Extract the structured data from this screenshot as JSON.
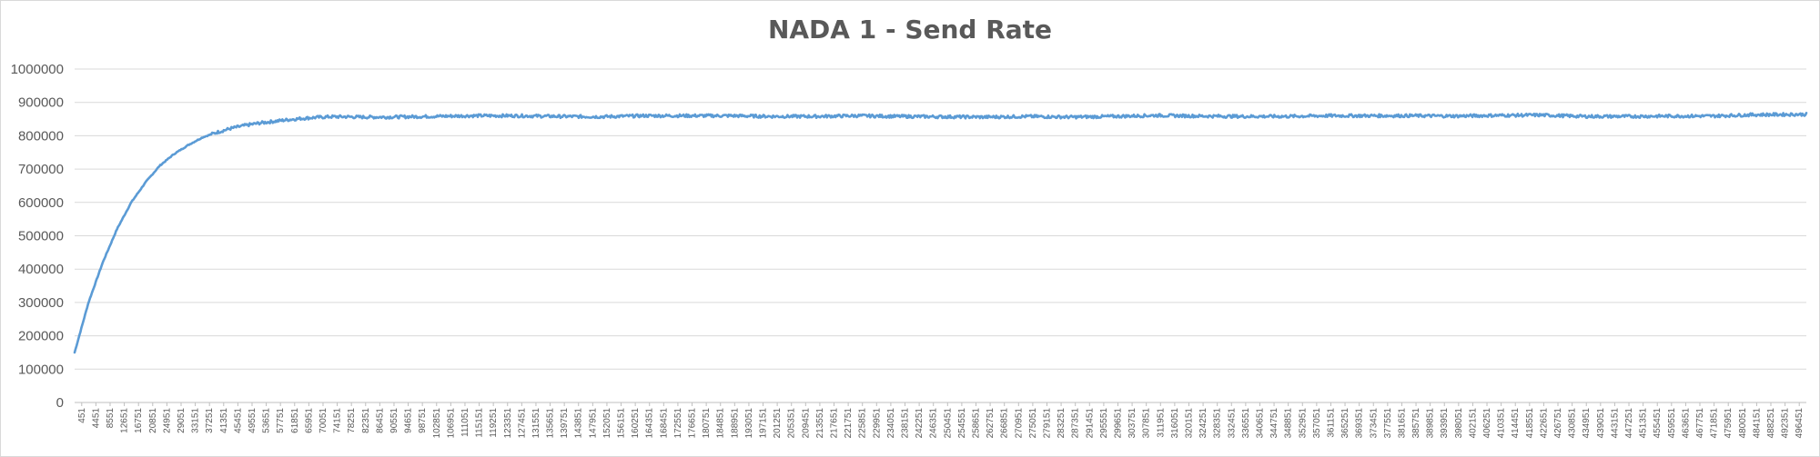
{
  "chart_data": {
    "type": "line",
    "title": "NADA 1 - Send Rate",
    "xlabel": "",
    "ylabel": "",
    "ylim": [
      0,
      1000000
    ],
    "y_ticks": [
      0,
      100000,
      200000,
      300000,
      400000,
      500000,
      600000,
      700000,
      800000,
      900000,
      1000000
    ],
    "x_tick_labels": [
      "451",
      "4451",
      "8551",
      "12651",
      "16751",
      "20851",
      "24951",
      "29051",
      "33151",
      "37251",
      "41351",
      "45451",
      "49551",
      "53651",
      "57751",
      "61851",
      "65951",
      "70051",
      "74151",
      "78251",
      "82351",
      "86451",
      "90551",
      "94651",
      "98751",
      "102851",
      "106951",
      "111051",
      "115151",
      "119251",
      "123351",
      "127451",
      "131551",
      "135651",
      "139751",
      "143851",
      "147951",
      "152051",
      "156151",
      "160251",
      "164351",
      "168451",
      "172551",
      "176651",
      "180751",
      "184851",
      "188951",
      "193051",
      "197151",
      "201251",
      "205351",
      "209451",
      "213551",
      "217651",
      "221751",
      "225851",
      "229951",
      "234051",
      "238151",
      "242251",
      "246351",
      "250451",
      "254551",
      "258651",
      "262751",
      "266851",
      "270951",
      "275051",
      "279151",
      "283251",
      "287351",
      "291451",
      "295551",
      "299651",
      "303751",
      "307851",
      "311951",
      "316051",
      "320151",
      "324251",
      "328351",
      "332451",
      "336551",
      "340651",
      "344751",
      "348851",
      "352951",
      "357051",
      "361151",
      "365251",
      "369351",
      "373451",
      "377551",
      "381651",
      "385751",
      "389851",
      "393951",
      "398051",
      "402151",
      "406251",
      "410351",
      "414451",
      "418551",
      "422651",
      "426751",
      "430851",
      "434951",
      "439051",
      "443151",
      "447251",
      "451351",
      "455451",
      "459551",
      "463651",
      "467751",
      "471851",
      "475951",
      "480051",
      "484151",
      "488251",
      "492351",
      "496451"
    ],
    "grid": true,
    "legend": "none",
    "series": [
      {
        "color": "#5b9bd5",
        "x": [
          451,
          4451,
          8551,
          12651,
          16751,
          20851,
          24951,
          29051,
          33151,
          37251,
          41351,
          45451,
          49551,
          53651,
          57751,
          61851,
          65951,
          70051,
          74151,
          78251,
          82351,
          90551,
          102851,
          115151,
          127451,
          139751,
          152051,
          164351,
          176651,
          188951,
          201251,
          213551,
          225851,
          238151,
          250451,
          262751,
          275051,
          287351,
          299651,
          311951,
          324251,
          336551,
          348851,
          361151,
          373451,
          385751,
          398051,
          410351,
          422651,
          434951,
          447251,
          459551,
          471851,
          484151,
          496451,
          499000
        ],
        "values": [
          150000,
          300000,
          420000,
          520000,
          600000,
          660000,
          710000,
          745000,
          772000,
          795000,
          810000,
          822000,
          831000,
          838000,
          843000,
          848000,
          852000,
          855000,
          857000,
          857000,
          856000,
          856000,
          858000,
          860000,
          860000,
          858000,
          857000,
          860000,
          860000,
          860000,
          858000,
          858000,
          860000,
          858000,
          857000,
          856000,
          858000,
          856000,
          858000,
          861000,
          859000,
          858000,
          858000,
          860000,
          860000,
          860000,
          859000,
          861000,
          862000,
          858000,
          858000,
          859000,
          859000,
          863000,
          864000,
          864000
        ]
      }
    ]
  }
}
